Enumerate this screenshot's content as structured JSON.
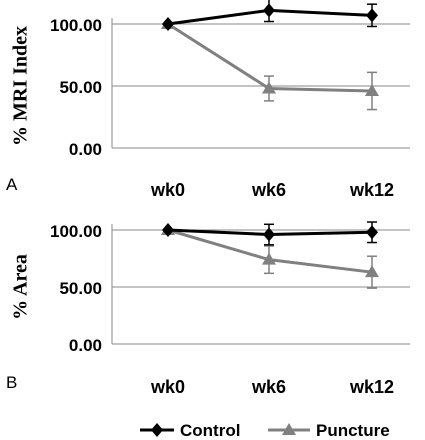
{
  "chart_data": [
    {
      "type": "line",
      "panel_label": "A",
      "ylabel": "% MRI Index",
      "categories": [
        "wk0",
        "wk6",
        "wk12"
      ],
      "ylim": [
        0,
        100
      ],
      "yticks": [
        "0.00",
        "50.00",
        "100.00"
      ],
      "grid": true,
      "series": [
        {
          "name": "Control",
          "values": [
            100,
            111,
            107
          ],
          "errors": [
            0,
            9,
            9
          ],
          "color": "#000000",
          "marker": "diamond"
        },
        {
          "name": "Puncture",
          "values": [
            100,
            48,
            46
          ],
          "errors": [
            0,
            10,
            15
          ],
          "color": "#808080",
          "marker": "triangle"
        }
      ]
    },
    {
      "type": "line",
      "panel_label": "B",
      "ylabel": "% Area",
      "categories": [
        "wk0",
        "wk6",
        "wk12"
      ],
      "ylim": [
        0,
        100
      ],
      "yticks": [
        "0.00",
        "50.00",
        "100.00"
      ],
      "grid": true,
      "series": [
        {
          "name": "Control",
          "values": [
            100,
            96,
            98
          ],
          "errors": [
            0,
            9,
            9
          ],
          "color": "#000000",
          "marker": "diamond"
        },
        {
          "name": "Puncture",
          "values": [
            100,
            74,
            63
          ],
          "errors": [
            0,
            12,
            14
          ],
          "color": "#808080",
          "marker": "triangle"
        }
      ]
    }
  ],
  "legend": {
    "placement": "bottom",
    "items": [
      {
        "label": "Control",
        "color": "#000000",
        "marker": "diamond"
      },
      {
        "label": "Puncture",
        "color": "#808080",
        "marker": "triangle"
      }
    ]
  }
}
